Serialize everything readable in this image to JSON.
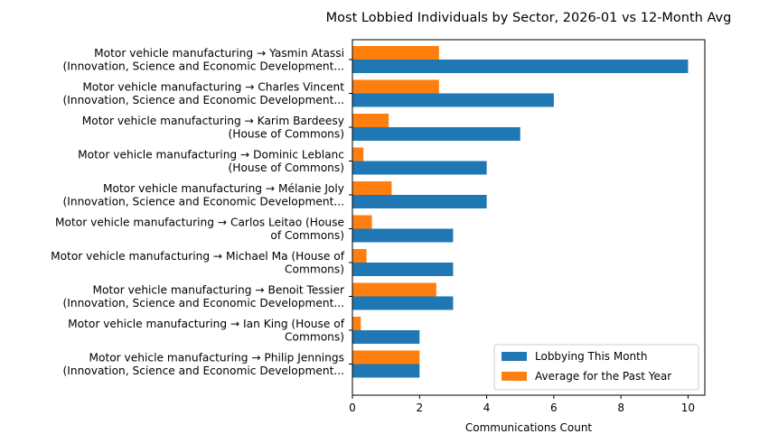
{
  "chart_data": {
    "type": "bar",
    "orientation": "horizontal",
    "title": "Most Lobbied Individuals by Sector, 2026-01 vs 12-Month Avg",
    "xlabel": "Communications Count",
    "ylabel": "",
    "xlim": [
      0,
      10.5
    ],
    "xticks": [
      0,
      2,
      4,
      6,
      8,
      10
    ],
    "grid": false,
    "legend_position": "lower-right",
    "categories": [
      [
        "Motor vehicle manufacturing → Yasmin Atassi",
        "(Innovation, Science and Economic Development..."
      ],
      [
        "Motor vehicle manufacturing → Charles Vincent",
        "(Innovation, Science and Economic Development..."
      ],
      [
        "Motor vehicle manufacturing → Karim Bardeesy",
        "(House of Commons)"
      ],
      [
        "Motor vehicle manufacturing → Dominic Leblanc",
        "(House of Commons)"
      ],
      [
        "Motor vehicle manufacturing → Mélanie Joly",
        "(Innovation, Science and Economic Development..."
      ],
      [
        "Motor vehicle manufacturing → Carlos Leitao (House",
        "of Commons)"
      ],
      [
        "Motor vehicle manufacturing → Michael Ma (House of",
        "Commons)"
      ],
      [
        "Motor vehicle manufacturing → Benoit Tessier",
        "(Innovation, Science and Economic Development..."
      ],
      [
        "Motor vehicle manufacturing → Ian King (House of",
        "Commons)"
      ],
      [
        "Motor vehicle manufacturing → Philip Jennings",
        "(Innovation, Science and Economic Development..."
      ]
    ],
    "series": [
      {
        "name": "Lobbying This Month",
        "color": "#1f77b4",
        "values": [
          10,
          6,
          5,
          4,
          4,
          3,
          3,
          3,
          2,
          2
        ]
      },
      {
        "name": "Average for the Past Year",
        "color": "#ff7f0e",
        "values": [
          2.58,
          2.58,
          1.08,
          0.33,
          1.17,
          0.58,
          0.42,
          2.5,
          0.25,
          2.0
        ]
      }
    ]
  }
}
